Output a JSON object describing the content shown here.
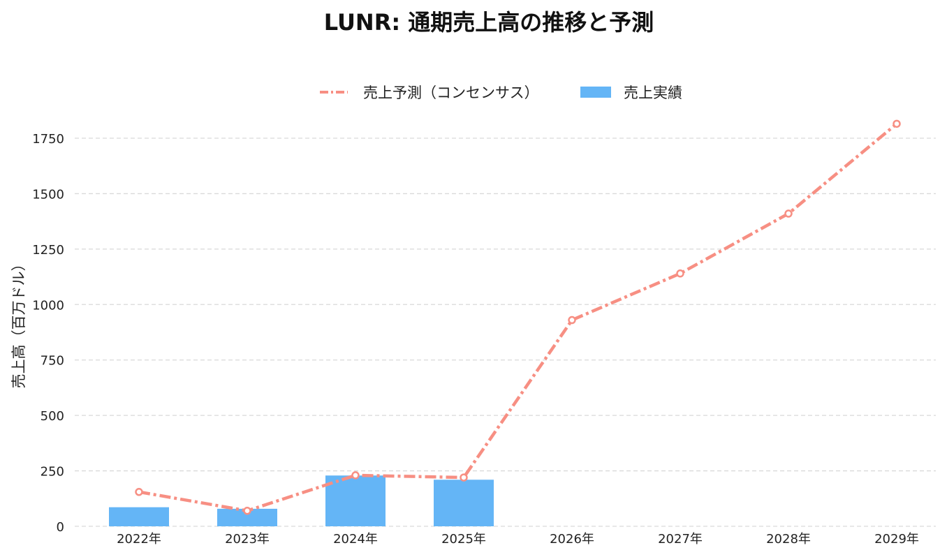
{
  "chart_data": {
    "type": "bar",
    "title": "LUNR: 通期売上高の推移と予測",
    "ylabel": "売上高（百万ドル）",
    "xlabel": "",
    "categories": [
      "2022年",
      "2023年",
      "2024年",
      "2025年",
      "2026年",
      "2027年",
      "2028年",
      "2029年"
    ],
    "ylim": [
      0,
      1850
    ],
    "yticks": [
      0,
      250,
      500,
      750,
      1000,
      1250,
      1500,
      1750
    ],
    "grid": "horizontal",
    "legend_placement": "top-center",
    "series": [
      {
        "name": "売上予測（コンセンサス）",
        "type": "line",
        "style": "dash-dot",
        "color": "#f78f83",
        "values": [
          155,
          70,
          230,
          220,
          930,
          1140,
          1410,
          1815
        ]
      },
      {
        "name": "売上実績",
        "type": "bar",
        "color": "#64b5f6",
        "values": [
          86,
          79,
          229,
          210,
          null,
          null,
          null,
          null
        ]
      }
    ]
  }
}
